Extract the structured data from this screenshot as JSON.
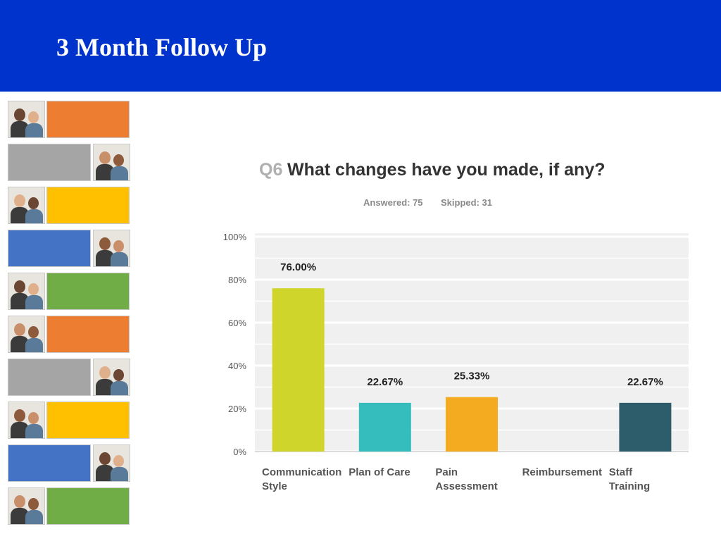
{
  "slide": {
    "title": "3 Month Follow Up",
    "header_color": "#0033cc"
  },
  "side_strip": {
    "rows": [
      {
        "color": "#ed7d31",
        "photo_side": "left",
        "photo_icon": "people-photo-icon"
      },
      {
        "color": "#a5a5a5",
        "photo_side": "right",
        "photo_icon": "worker-photo-icon"
      },
      {
        "color": "#ffc000",
        "photo_side": "left",
        "photo_icon": "children-photo-icon"
      },
      {
        "color": "#4472c4",
        "photo_side": "right",
        "photo_icon": "doctors-photo-icon"
      },
      {
        "color": "#70ad47",
        "photo_side": "left",
        "photo_icon": "elder-photo-icon"
      },
      {
        "color": "#ed7d31",
        "photo_side": "left",
        "photo_icon": "people-photo-icon"
      },
      {
        "color": "#a5a5a5",
        "photo_side": "right",
        "photo_icon": "worker-photo-icon"
      },
      {
        "color": "#ffc000",
        "photo_side": "left",
        "photo_icon": "children-photo-icon"
      },
      {
        "color": "#4472c4",
        "photo_side": "right",
        "photo_icon": "doctors-photo-icon"
      },
      {
        "color": "#70ad47",
        "photo_side": "left",
        "photo_icon": "elder-photo-icon"
      }
    ]
  },
  "chart_data": {
    "type": "bar",
    "question_number": "Q6",
    "title": "What changes have you made, if any?",
    "answered": "Answered: 75",
    "skipped": "Skipped: 31",
    "categories": [
      [
        "Communication",
        "Style"
      ],
      [
        "Plan of Care"
      ],
      [
        "Pain",
        "Assessment"
      ],
      [
        "Reimbursement"
      ],
      [
        "Staff",
        "Training"
      ]
    ],
    "values": [
      76.0,
      22.67,
      25.33,
      0,
      22.67
    ],
    "value_labels": [
      "76.00%",
      "22.67%",
      "25.33%",
      "",
      "22.67%"
    ],
    "colors": [
      "#cfd52a",
      "#35bdbd",
      "#f5ab20",
      "#7d63a8",
      "#2d5d6b"
    ],
    "ylim": [
      0,
      100
    ],
    "yticks": [
      0,
      20,
      40,
      60,
      80,
      100
    ],
    "ytick_labels": [
      "0%",
      "20%",
      "40%",
      "60%",
      "80%",
      "100%"
    ],
    "grid": true,
    "plot_background": "#f0f0f0"
  }
}
